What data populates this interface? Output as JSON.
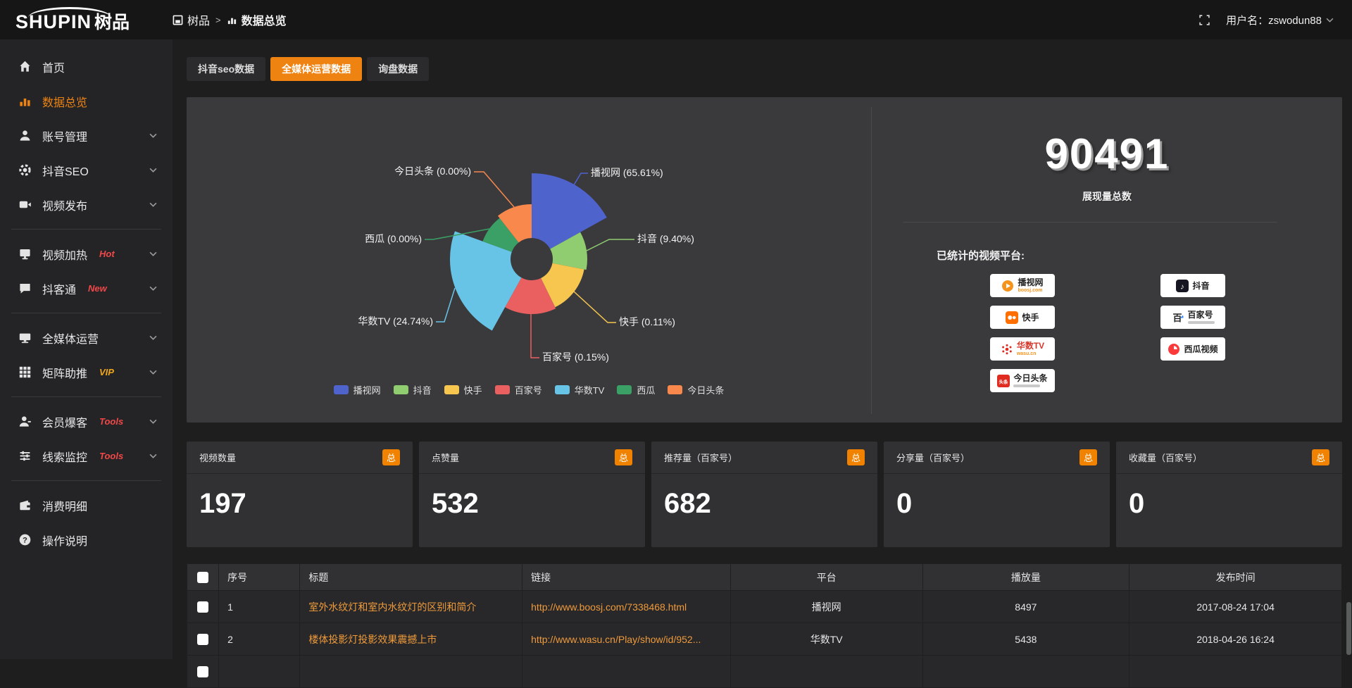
{
  "colors": {
    "accent": "#ee8311",
    "link": "#ef9a3a",
    "hot": "#f04848",
    "vip": "#f0a818",
    "badge": "#f08200"
  },
  "header": {
    "logo_en": "SHUPIN",
    "logo_cn": "树品",
    "breadcrumb": [
      {
        "label": "树品"
      },
      {
        "label": "数据总览"
      }
    ],
    "breadcrumb_sep": ">",
    "username": "用户名：zswodun88"
  },
  "sidebar": {
    "groups": [
      [
        {
          "icon": "home",
          "label": "首页"
        },
        {
          "icon": "bars",
          "label": "数据总览",
          "active": true
        },
        {
          "icon": "user",
          "label": "账号管理",
          "chevron": true
        },
        {
          "icon": "gear",
          "label": "抖音SEO",
          "chevron": true
        },
        {
          "icon": "video",
          "label": "视频发布",
          "chevron": true
        }
      ],
      [
        {
          "icon": "monitor",
          "label": "视频加热",
          "badge": "Hot",
          "badge_style": "hot",
          "chevron": true
        },
        {
          "icon": "chat",
          "label": "抖客通",
          "badge": "New",
          "badge_style": "hot",
          "chevron": true
        }
      ],
      [
        {
          "icon": "display",
          "label": "全媒体运营",
          "chevron": true
        },
        {
          "icon": "grid",
          "label": "矩阵助推",
          "badge": "VIP",
          "badge_style": "vip",
          "chevron": true
        }
      ],
      [
        {
          "icon": "member",
          "label": "会员爆客",
          "badge": "Tools",
          "badge_style": "hot",
          "chevron": true
        },
        {
          "icon": "sliders",
          "label": "线索监控",
          "badge": "Tools",
          "badge_style": "hot",
          "chevron": true
        }
      ],
      [
        {
          "icon": "wallet",
          "label": "消费明细"
        },
        {
          "icon": "question",
          "label": "操作说明"
        }
      ]
    ]
  },
  "tabs": [
    {
      "label": "抖音seo数据",
      "active": false
    },
    {
      "label": "全媒体运营数据",
      "active": true
    },
    {
      "label": "询盘数据",
      "active": false
    }
  ],
  "chart_data": {
    "type": "pie",
    "variant": "nightingale-rose",
    "inner_radius": 30,
    "center": [
      490,
      230
    ],
    "legend_position": "bottom",
    "slices": [
      {
        "name": "播视网",
        "pct": 65.61,
        "label": "播视网 (65.61%)",
        "color": "#4f63cd",
        "r": 122,
        "a0": 0,
        "a1": 61,
        "anchor": "start",
        "text": [
          574,
          112
        ],
        "line": [
          [
            548,
            128
          ],
          [
            560,
            108
          ],
          [
            570,
            108
          ]
        ]
      },
      {
        "name": "抖音",
        "pct": 9.4,
        "label": "抖音 (9.40%)",
        "color": "#90cc70",
        "r": 79,
        "a0": 61,
        "a1": 101,
        "anchor": "start",
        "text": [
          640,
          206
        ],
        "line": [
          [
            568,
            218
          ],
          [
            600,
            202
          ],
          [
            636,
            202
          ]
        ]
      },
      {
        "name": "快手",
        "pct": 0.11,
        "label": "快手 (0.11%)",
        "color": "#f6c64f",
        "r": 76,
        "a0": 101,
        "a1": 154,
        "anchor": "start",
        "text": [
          614,
          324
        ],
        "line": [
          [
            550,
            276
          ],
          [
            598,
            320
          ],
          [
            610,
            320
          ]
        ]
      },
      {
        "name": "百家号",
        "pct": 0.15,
        "label": "百家号 (0.15%)",
        "color": "#ea6060",
        "r": 78,
        "a0": 154,
        "a1": 209,
        "anchor": "start",
        "text": [
          505,
          374
        ],
        "line": [
          [
            489,
            308
          ],
          [
            489,
            370
          ],
          [
            501,
            370
          ]
        ]
      },
      {
        "name": "华数TV",
        "pct": 24.74,
        "label": "华数TV (24.74%)",
        "color": "#68c4e6",
        "r": 116,
        "a0": 209,
        "a1": 290,
        "anchor": "end",
        "text": [
          350,
          323
        ],
        "line": [
          [
            381,
            271
          ],
          [
            366,
            319
          ],
          [
            354,
            319
          ]
        ]
      },
      {
        "name": "西瓜",
        "pct": 0.0,
        "label": "西瓜 (0.00%)",
        "color": "#3aa066",
        "r": 74,
        "a0": 290,
        "a1": 322,
        "anchor": "end",
        "text": [
          334,
          206
        ],
        "line": [
          [
            430,
            187
          ],
          [
            350,
            202
          ],
          [
            338,
            202
          ]
        ]
      },
      {
        "name": "今日头条",
        "pct": 0.0,
        "label": "今日头条 (0.00%)",
        "color": "#f8884c",
        "r": 78,
        "a0": 322,
        "a1": 360,
        "anchor": "end",
        "text": [
          404,
          110
        ],
        "line": [
          [
            465,
            156
          ],
          [
            422,
            106
          ],
          [
            408,
            106
          ]
        ]
      }
    ],
    "legend": [
      "播视网",
      "抖音",
      "快手",
      "百家号",
      "华数TV",
      "西瓜",
      "今日头条"
    ]
  },
  "stats_panel": {
    "total": "90491",
    "total_label": "展现量总数",
    "platforms_label": "已统计的视频平台:",
    "platforms": [
      {
        "name": "播视网",
        "icon": "boosj",
        "sub": "boosj.com",
        "sub_color": "#f5941d"
      },
      {
        "name": "抖音",
        "icon": "douyin"
      },
      {
        "name": "快手",
        "icon": "kuaishou"
      },
      {
        "name": "百家号",
        "icon": "baijia",
        "sub_bar": true
      },
      {
        "name": "华数TV",
        "icon": "wasu",
        "sub": "wasu.cn",
        "name_color": "#d6382c",
        "sub_color": "#f5941d"
      },
      {
        "name": "西瓜视频",
        "icon": "xigua"
      },
      {
        "name": "今日头条",
        "icon": "toutiao",
        "sub_bar": true
      }
    ]
  },
  "stat_cards": [
    {
      "label": "视频数量",
      "badge": "总",
      "value": "197"
    },
    {
      "label": "点赞量",
      "badge": "总",
      "value": "532"
    },
    {
      "label": "推荐量（百家号）",
      "badge": "总",
      "value": "682"
    },
    {
      "label": "分享量（百家号）",
      "badge": "总",
      "value": "0"
    },
    {
      "label": "收藏量（百家号）",
      "badge": "总",
      "value": "0"
    }
  ],
  "table": {
    "headers": [
      "序号",
      "标题",
      "链接",
      "平台",
      "播放量",
      "发布时间"
    ],
    "rows": [
      {
        "index": "1",
        "title": "室外水纹灯和室内水纹灯的区别和简介",
        "link": "http://www.boosj.com/7338468.html",
        "platform": "播视网",
        "views": "8497",
        "time": "2017-08-24 17:04"
      },
      {
        "index": "2",
        "title": "楼体投影灯投影效果震撼上市",
        "link": "http://www.wasu.cn/Play/show/id/952...",
        "platform": "华数TV",
        "views": "5438",
        "time": "2018-04-26 16:24"
      }
    ]
  }
}
